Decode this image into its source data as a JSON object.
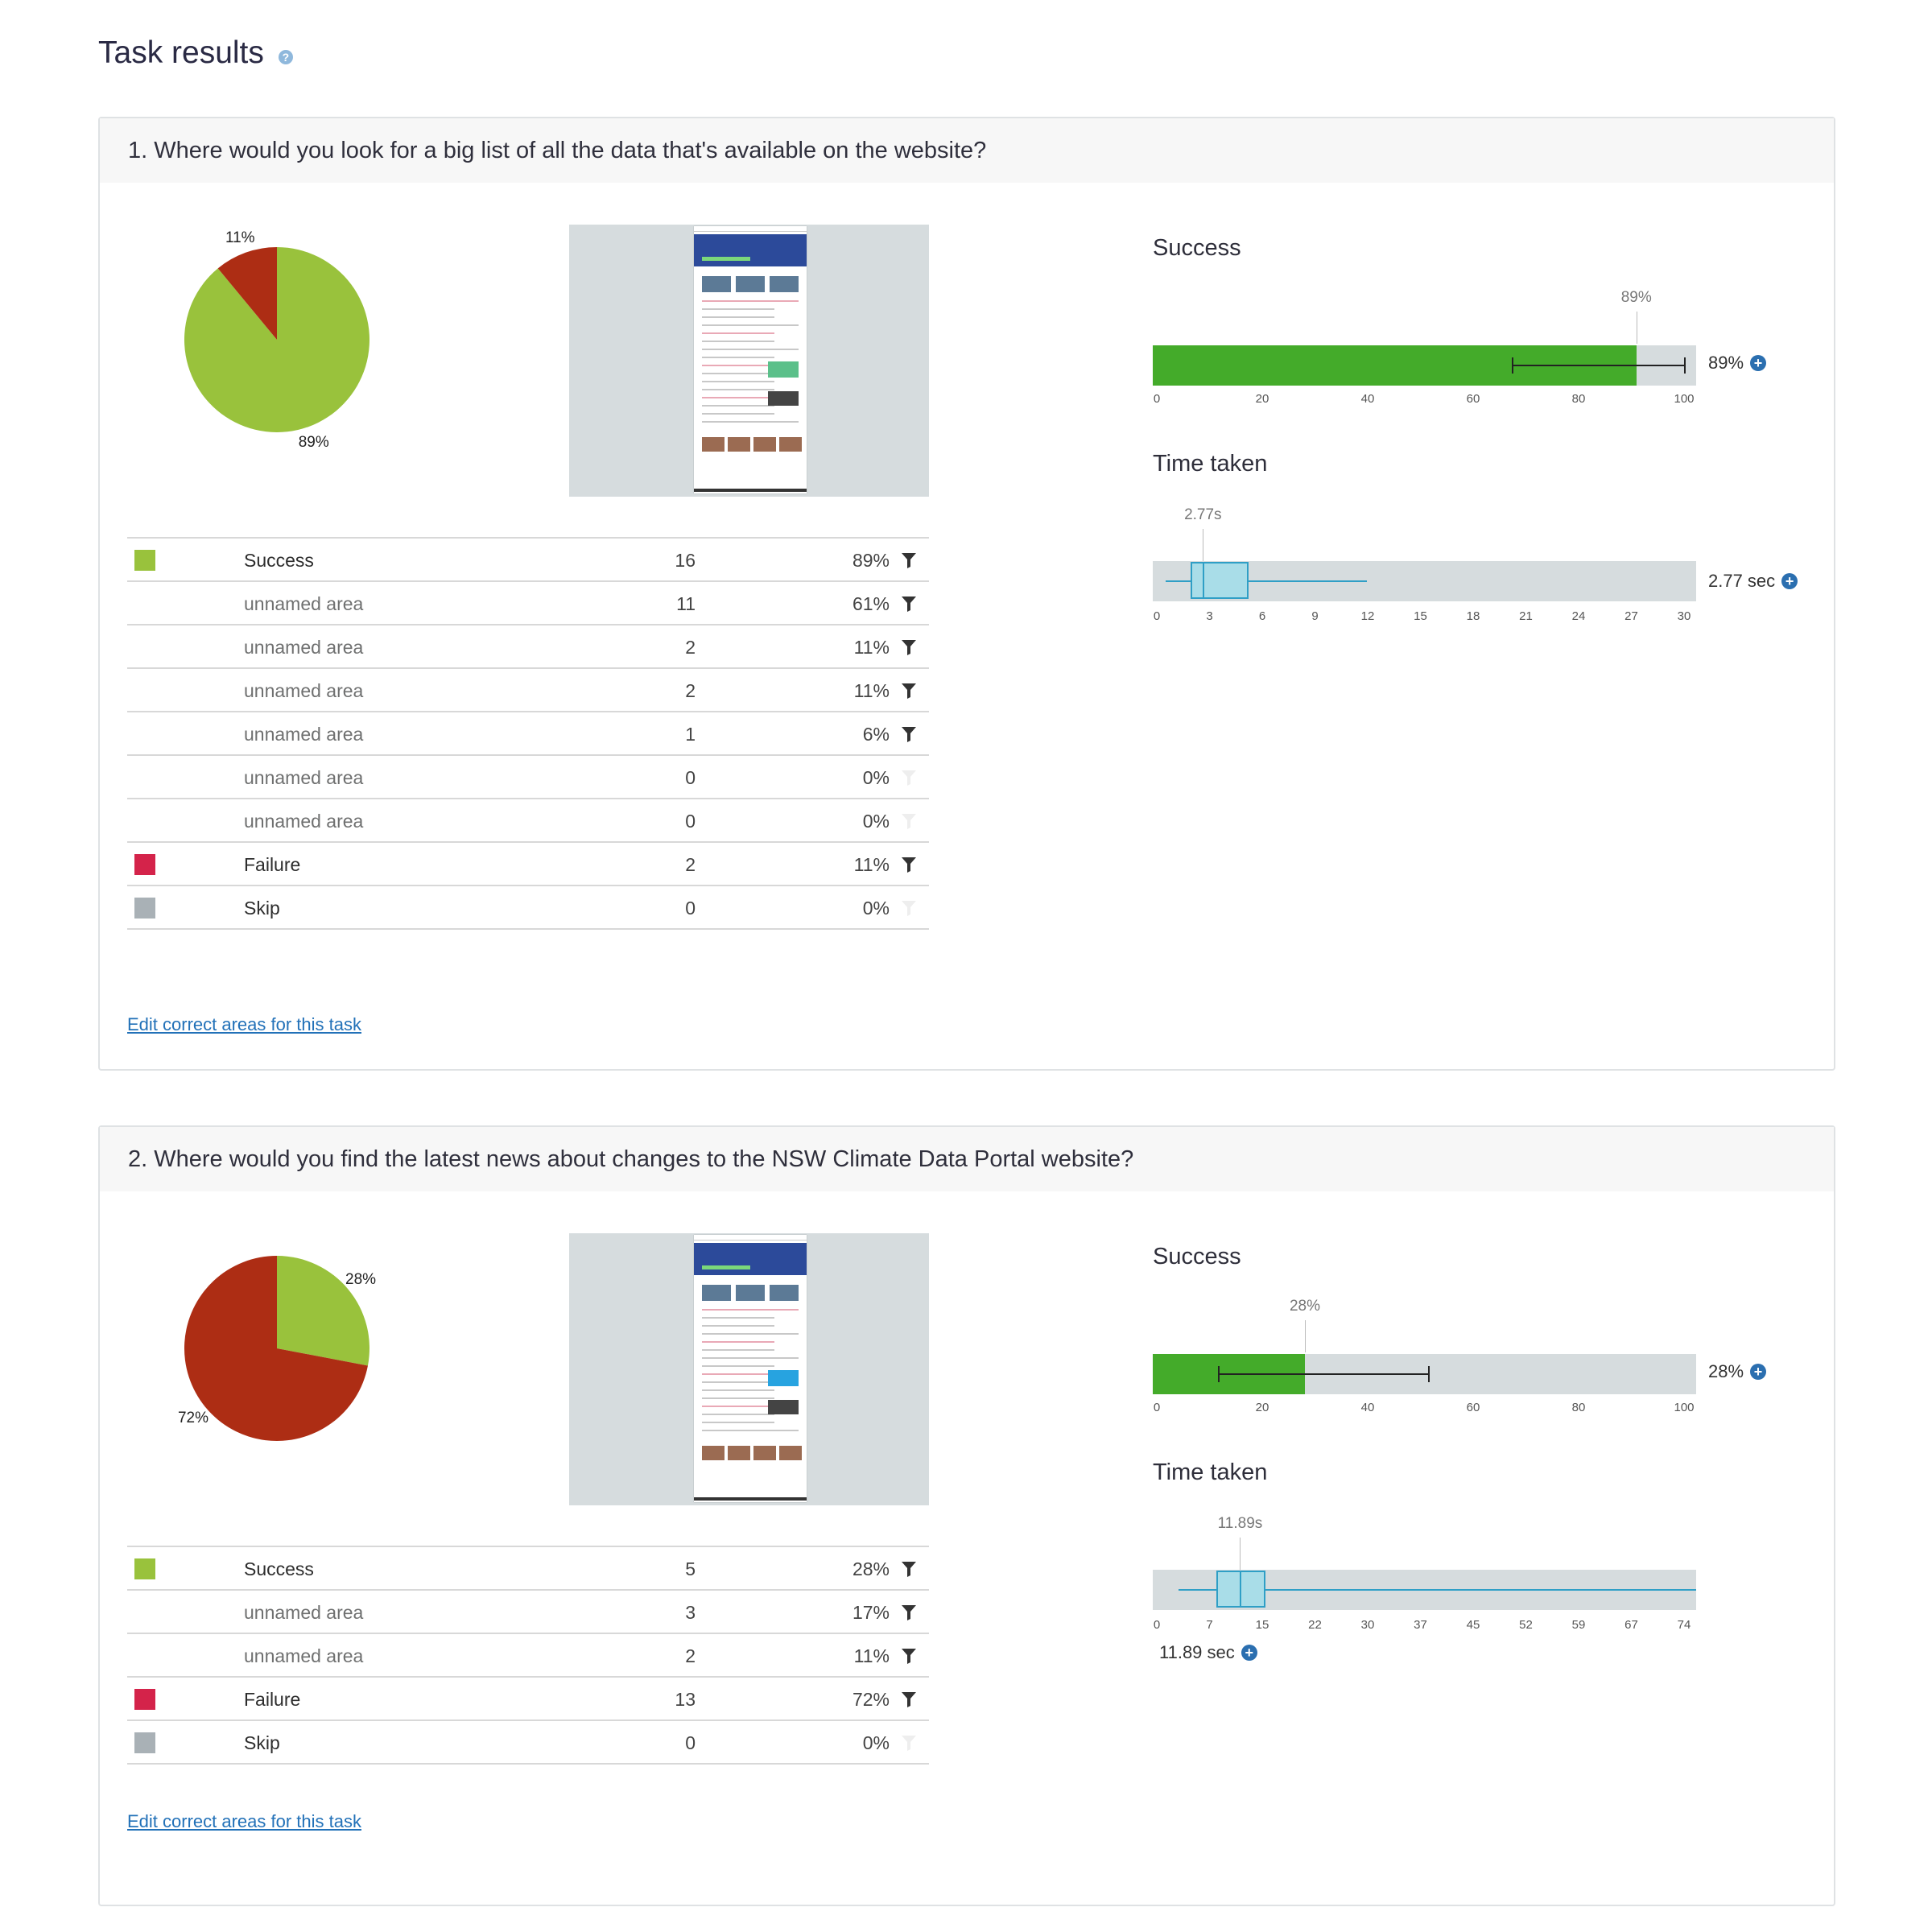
{
  "page": {
    "title": "Task results"
  },
  "colors": {
    "success": "#99c23c",
    "failure": "#d4234a",
    "skip": "#a9b1b6",
    "pie_fail": "#ad2d14",
    "bar_green": "#44ab2a",
    "box_fill": "#a9dde8",
    "box_stroke": "#2f9fc6"
  },
  "tasks": [
    {
      "question": "1. Where would you look for a big list of all the data that's available on the website?",
      "pie": {
        "success_pct": 89,
        "fail_pct": 11,
        "success_label": "89%",
        "fail_label": "11%"
      },
      "rows": [
        {
          "label": "Success",
          "count": "16",
          "pct": "89%",
          "swatch": "success",
          "sub": false,
          "filter": true
        },
        {
          "label": "unnamed area",
          "count": "11",
          "pct": "61%",
          "swatch": "",
          "sub": true,
          "filter": true
        },
        {
          "label": "unnamed area",
          "count": "2",
          "pct": "11%",
          "swatch": "",
          "sub": true,
          "filter": true
        },
        {
          "label": "unnamed area",
          "count": "2",
          "pct": "11%",
          "swatch": "",
          "sub": true,
          "filter": true
        },
        {
          "label": "unnamed area",
          "count": "1",
          "pct": "6%",
          "swatch": "",
          "sub": true,
          "filter": true
        },
        {
          "label": "unnamed area",
          "count": "0",
          "pct": "0%",
          "swatch": "",
          "sub": true,
          "filter": false
        },
        {
          "label": "unnamed area",
          "count": "0",
          "pct": "0%",
          "swatch": "",
          "sub": true,
          "filter": false
        },
        {
          "label": "Failure",
          "count": "2",
          "pct": "11%",
          "swatch": "failure",
          "sub": false,
          "filter": true
        },
        {
          "label": "Skip",
          "count": "0",
          "pct": "0%",
          "swatch": "skip",
          "sub": false,
          "filter": false
        }
      ],
      "edit_link": "Edit correct areas for this task",
      "success": {
        "title": "Success",
        "value": 89,
        "ci": [
          66,
          98
        ],
        "marker_label": "89%",
        "summary": "89%",
        "ticks": [
          "0",
          "20",
          "40",
          "60",
          "80",
          "100"
        ]
      },
      "time": {
        "title": "Time taken",
        "median_label": "2.77s",
        "summary": "2.77 sec",
        "axis_max": 30,
        "min": 0.7,
        "q1": 2.1,
        "median": 2.77,
        "q3": 5.3,
        "max": 11.8,
        "ticks": [
          "0",
          "3",
          "6",
          "9",
          "12",
          "15",
          "18",
          "21",
          "24",
          "27",
          "30"
        ]
      }
    },
    {
      "question": "2. Where would you find the latest news about changes to the NSW Climate Data Portal website?",
      "pie": {
        "success_pct": 28,
        "fail_pct": 72,
        "success_label": "28%",
        "fail_label": "72%"
      },
      "rows": [
        {
          "label": "Success",
          "count": "5",
          "pct": "28%",
          "swatch": "success",
          "sub": false,
          "filter": true
        },
        {
          "label": "unnamed area",
          "count": "3",
          "pct": "17%",
          "swatch": "",
          "sub": true,
          "filter": true
        },
        {
          "label": "unnamed area",
          "count": "2",
          "pct": "11%",
          "swatch": "",
          "sub": true,
          "filter": true
        },
        {
          "label": "Failure",
          "count": "13",
          "pct": "72%",
          "swatch": "failure",
          "sub": false,
          "filter": true
        },
        {
          "label": "Skip",
          "count": "0",
          "pct": "0%",
          "swatch": "skip",
          "sub": false,
          "filter": false
        }
      ],
      "edit_link": "Edit correct areas for this task",
      "success": {
        "title": "Success",
        "value": 28,
        "ci": [
          12,
          51
        ],
        "marker_label": "28%",
        "summary": "28%",
        "ticks": [
          "0",
          "20",
          "40",
          "60",
          "80",
          "100"
        ]
      },
      "time": {
        "title": "Time taken",
        "median_label": "11.89s",
        "summary": "11.89 sec",
        "axis_max": 74,
        "min": 3.5,
        "q1": 8.7,
        "median": 11.89,
        "q3": 15.3,
        "max": 74,
        "ticks": [
          "0",
          "7",
          "15",
          "22",
          "30",
          "37",
          "45",
          "52",
          "59",
          "67",
          "74"
        ]
      }
    }
  ]
}
